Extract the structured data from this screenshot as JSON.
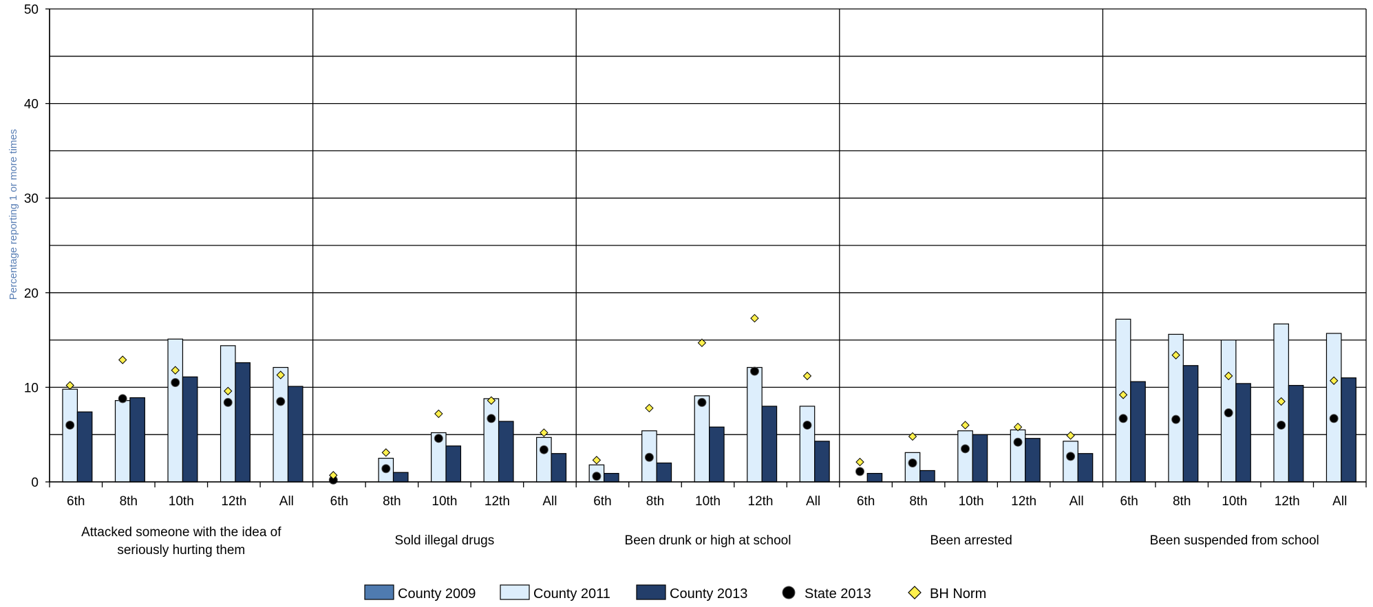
{
  "chart_data": {
    "type": "bar",
    "title": "",
    "ylabel": "Percentage reporting 1 or more times",
    "ylim": [
      0,
      50
    ],
    "yticks": [
      0,
      10,
      20,
      30,
      40,
      50
    ],
    "grid": true,
    "legend_position": "bottom",
    "grade_labels": [
      "6th",
      "8th",
      "10th",
      "12th",
      "All"
    ],
    "groups": [
      {
        "label_lines": [
          "Attacked someone with the idea of",
          "seriously hurting them"
        ],
        "county_2009": [
          null,
          null,
          null,
          null,
          null
        ],
        "county_2011": [
          9.8,
          8.6,
          15.1,
          14.4,
          12.1
        ],
        "county_2013": [
          7.4,
          8.9,
          11.1,
          12.6,
          10.1
        ],
        "state_2013": [
          6.0,
          8.8,
          10.5,
          8.4,
          8.5
        ],
        "bh_norm": [
          10.2,
          12.9,
          11.8,
          9.6,
          11.3
        ]
      },
      {
        "label_lines": [
          "Sold illegal drugs"
        ],
        "county_2009": [
          null,
          null,
          null,
          null,
          null
        ],
        "county_2011": [
          0.0,
          2.5,
          5.2,
          8.8,
          4.7
        ],
        "county_2013": [
          0.0,
          1.0,
          3.8,
          6.4,
          3.0
        ],
        "state_2013": [
          0.2,
          1.4,
          4.6,
          6.7,
          3.4
        ],
        "bh_norm": [
          0.7,
          3.1,
          7.2,
          8.6,
          5.2
        ]
      },
      {
        "label_lines": [
          "Been drunk or high at school"
        ],
        "county_2009": [
          null,
          null,
          null,
          null,
          null
        ],
        "county_2011": [
          1.8,
          5.4,
          9.1,
          12.1,
          8.0
        ],
        "county_2013": [
          0.9,
          2.0,
          5.8,
          8.0,
          4.3
        ],
        "state_2013": [
          0.6,
          2.6,
          8.4,
          11.7,
          6.0
        ],
        "bh_norm": [
          2.3,
          7.8,
          14.7,
          17.3,
          11.2
        ]
      },
      {
        "label_lines": [
          "Been arrested"
        ],
        "county_2009": [
          null,
          null,
          null,
          null,
          null
        ],
        "county_2011": [
          0.0,
          3.1,
          5.4,
          5.5,
          4.3
        ],
        "county_2013": [
          0.9,
          1.2,
          5.0,
          4.6,
          3.0
        ],
        "state_2013": [
          1.1,
          2.0,
          3.5,
          4.2,
          2.7
        ],
        "bh_norm": [
          2.1,
          4.8,
          6.0,
          5.8,
          4.9
        ]
      },
      {
        "label_lines": [
          "Been suspended from school"
        ],
        "county_2009": [
          null,
          null,
          null,
          null,
          null
        ],
        "county_2011": [
          17.2,
          15.6,
          15.0,
          16.7,
          15.7
        ],
        "county_2013": [
          10.6,
          12.3,
          10.4,
          10.2,
          11.0
        ],
        "state_2013": [
          6.7,
          6.6,
          7.3,
          6.0,
          6.7
        ],
        "bh_norm": [
          9.2,
          13.4,
          11.2,
          8.5,
          10.7
        ]
      }
    ],
    "legend": [
      {
        "key": "county_2009",
        "label": "County 2009",
        "kind": "bar",
        "color": "#4f7bb0"
      },
      {
        "key": "county_2011",
        "label": "County 2011",
        "kind": "bar",
        "color": "#ddeefc"
      },
      {
        "key": "county_2013",
        "label": "County 2013",
        "kind": "bar",
        "color": "#233e6a"
      },
      {
        "key": "state_2013",
        "label": "State 2013",
        "kind": "circle",
        "color": "#000000"
      },
      {
        "key": "bh_norm",
        "label": "BH Norm",
        "kind": "diamond",
        "color": "#fff04d"
      }
    ]
  }
}
